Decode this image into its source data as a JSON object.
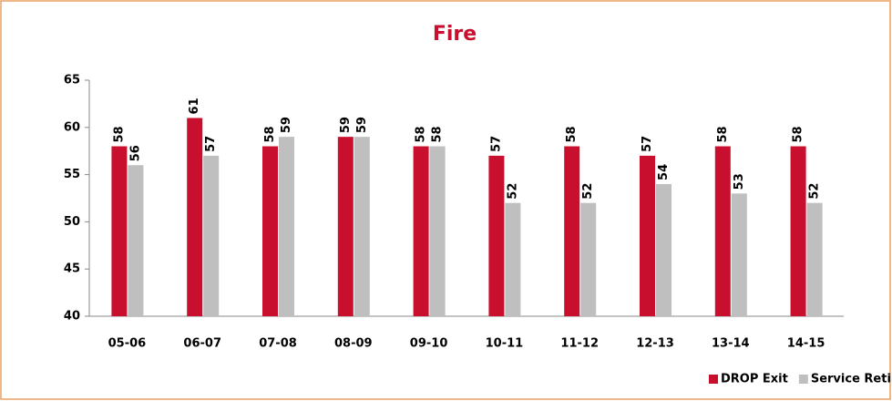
{
  "chart_data": {
    "type": "bar",
    "title": "Fire",
    "categories": [
      "05-06",
      "06-07",
      "07-08",
      "08-09",
      "09-10",
      "10-11",
      "11-12",
      "12-13",
      "13-14",
      "14-15"
    ],
    "series": [
      {
        "name": "DROP Exit",
        "color": "#c8102e",
        "values": [
          58,
          61,
          58,
          59,
          58,
          57,
          58,
          57,
          58,
          58
        ]
      },
      {
        "name": "Service Retirement",
        "color": "#bfbfbf",
        "values": [
          56,
          57,
          59,
          59,
          58,
          52,
          52,
          54,
          53,
          52
        ]
      }
    ],
    "ylim": [
      40,
      65
    ],
    "yticks": [
      40,
      45,
      50,
      55,
      60,
      65
    ],
    "grid": false,
    "legend": "lower right"
  }
}
